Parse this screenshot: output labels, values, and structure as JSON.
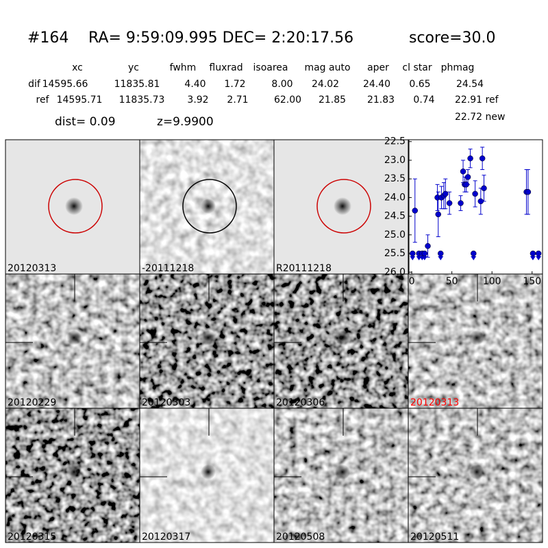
{
  "header": {
    "id": "#164",
    "coords": "RA= 9:59:09.995 DEC= 2:20:17.56",
    "score": "score=30.0"
  },
  "table": {
    "columns": [
      "xc",
      "yc",
      "fwhm",
      "fluxrad",
      "isoarea",
      "mag auto",
      "aper",
      "cl star",
      "phmag"
    ],
    "rows": [
      [
        "dif",
        "14595.66",
        "11835.81",
        "4.40",
        "1.72",
        "8.00",
        "24.02",
        "24.40",
        "0.65",
        "24.54"
      ],
      [
        "ref",
        "14595.71",
        "11835.73",
        "3.92",
        "2.71",
        "62.00",
        "21.85",
        "21.83",
        "0.74",
        "22.91 ref"
      ]
    ],
    "extra": "22.72 new"
  },
  "dist": "dist=  0.09",
  "z": "z=9.9900",
  "panels": [
    {
      "label": "20120313",
      "overlay": "circle",
      "overlay_color": "#cc0000"
    },
    {
      "label": "-20111218",
      "overlay": "circle",
      "overlay_color": "#000000"
    },
    {
      "label": "R20111218",
      "overlay": "circle",
      "overlay_color": "#cc0000"
    },
    {
      "label": "20120229",
      "overlay": "crosshair"
    },
    {
      "label": "20120303",
      "overlay": "crosshair"
    },
    {
      "label": "20120306",
      "overlay": "crosshair"
    },
    {
      "label": "20120313",
      "overlay": "crosshair",
      "label_color": "#ff0000"
    },
    {
      "label": "20120315",
      "overlay": "crosshair"
    },
    {
      "label": "20120317",
      "overlay": "crosshair"
    },
    {
      "label": "20120508",
      "overlay": "crosshair"
    },
    {
      "label": "20120511",
      "overlay": "crosshair"
    }
  ],
  "chart_data": {
    "type": "scatter",
    "xlim": [
      -3.5,
      163
    ],
    "ylim": [
      26.05,
      22.45
    ],
    "xticks": [
      0,
      50,
      100,
      150
    ],
    "yticks": [
      22.5,
      {
        "value": 23.0,
        "label": "23.0"
      },
      23.5,
      {
        "value": 24.0,
        "label": "24.0"
      },
      24.5,
      {
        "value": 25.0,
        "label": "25.0"
      },
      25.5,
      {
        "value": 26.0,
        "label": "26.0"
      }
    ],
    "series": [
      {
        "color": "#0000cc",
        "x": [
          4,
          20,
          32,
          33,
          37,
          40,
          42,
          47,
          61,
          64,
          66,
          68,
          70,
          73,
          79,
          86,
          88,
          90,
          143,
          145
        ],
        "values": [
          24.35,
          25.3,
          24.0,
          24.45,
          24.0,
          23.95,
          23.9,
          24.15,
          24.15,
          23.3,
          23.65,
          23.65,
          23.45,
          22.95,
          23.9,
          24.1,
          22.95,
          23.75,
          23.85,
          23.85
        ],
        "errors": [
          0.85,
          0.3,
          0.35,
          0.6,
          0.3,
          0.35,
          0.4,
          0.3,
          0.2,
          0.3,
          0.2,
          0.2,
          0.2,
          0.25,
          0.35,
          0.35,
          0.3,
          0.35,
          0.6,
          0.6
        ]
      },
      {
        "color": "#0000cc",
        "upper_limit": true,
        "x": [
          1,
          9,
          13,
          16,
          36,
          77,
          151,
          158
        ],
        "values": [
          25.5,
          25.5,
          25.5,
          25.5,
          25.5,
          25.5,
          25.5,
          25.5
        ]
      }
    ]
  }
}
